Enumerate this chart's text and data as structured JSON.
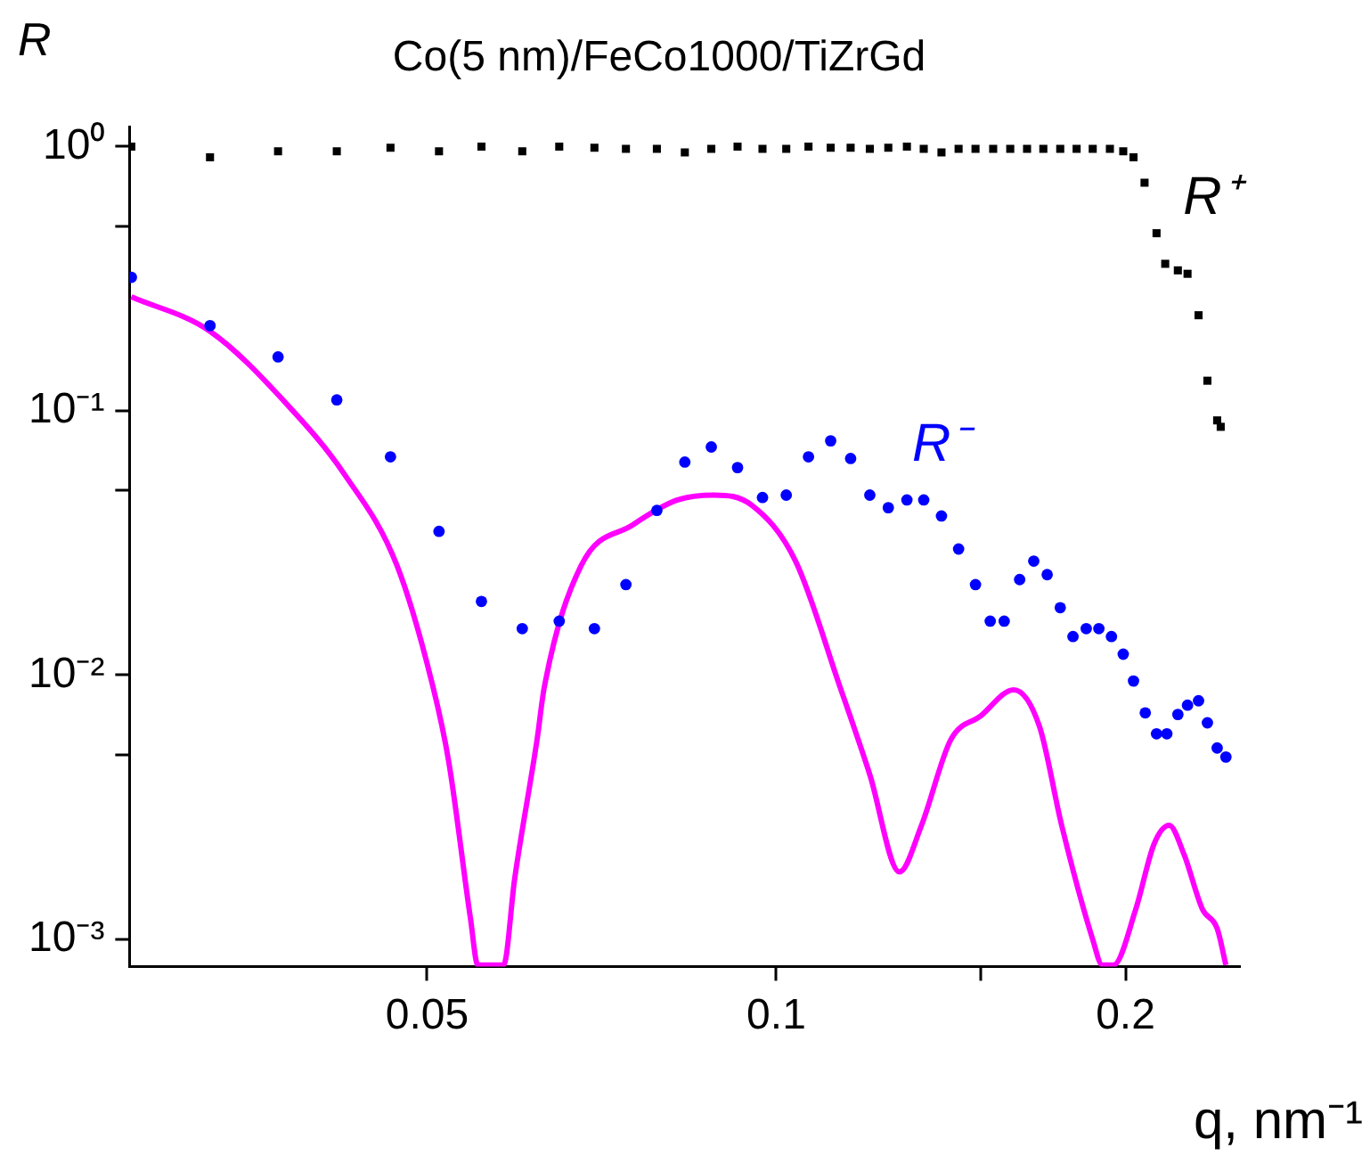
{
  "chart_data": {
    "type": "scatter",
    "title": "Co(5 nm)/FeCo1000/TiZrGd",
    "xlabel": "q, nm⁻¹",
    "ylabel": "R",
    "log": "xy",
    "grid": false,
    "legend": false,
    "xlim": [
      0.0277,
      0.251
    ],
    "xticks": [
      0.05,
      0.1,
      {
        "value": 0.15,
        "label": null
      },
      0.2
    ],
    "ylim": [
      0.00079,
      1.19
    ],
    "yticks": [
      {
        "value": 1,
        "label": "10⁰"
      },
      {
        "value": 0.5,
        "label": null
      },
      {
        "value": 0.1,
        "label": "10⁻¹"
      },
      {
        "value": 0.05,
        "label": null
      },
      {
        "value": 0.01,
        "label": "10⁻²"
      },
      {
        "value": 0.005,
        "label": null
      },
      {
        "value": 0.001,
        "label": "10⁻³"
      }
    ],
    "series": [
      {
        "name": "R⁺",
        "marker": "square",
        "color": "#000000",
        "x": [
          0.0278,
          0.0325,
          0.0372,
          0.0418,
          0.0465,
          0.0512,
          0.0557,
          0.0604,
          0.065,
          0.0697,
          0.0742,
          0.0789,
          0.0834,
          0.0879,
          0.0926,
          0.0973,
          0.102,
          0.1066,
          0.1114,
          0.1159,
          0.1204,
          0.1249,
          0.1296,
          0.134,
          0.1388,
          0.1436,
          0.1485,
          0.1538,
          0.1591,
          0.1645,
          0.1699,
          0.1757,
          0.1815,
          0.1874,
          0.1939,
          0.1991,
          0.2032,
          0.2077,
          0.2127,
          0.2164,
          0.2219,
          0.2262,
          0.2312,
          0.2353,
          0.2399,
          0.2416
        ],
        "values": [
          1.0,
          0.91,
          0.96,
          0.96,
          0.99,
          0.96,
          1.0,
          0.96,
          1.0,
          0.99,
          0.98,
          0.98,
          0.95,
          0.98,
          1.0,
          0.98,
          0.98,
          1.0,
          0.99,
          0.99,
          0.98,
          0.99,
          1.0,
          0.98,
          0.95,
          0.98,
          0.98,
          0.98,
          0.98,
          0.98,
          0.98,
          0.98,
          0.98,
          0.98,
          0.98,
          0.96,
          0.91,
          0.73,
          0.47,
          0.36,
          0.34,
          0.33,
          0.23,
          0.13,
          0.092,
          0.087
        ]
      },
      {
        "name": "R⁻",
        "marker": "circle",
        "color": "#0000ff",
        "x": [
          0.0278,
          0.0325,
          0.0372,
          0.0418,
          0.0465,
          0.0512,
          0.0557,
          0.0604,
          0.065,
          0.0697,
          0.0742,
          0.0789,
          0.0834,
          0.0879,
          0.0926,
          0.0973,
          0.102,
          0.1066,
          0.1114,
          0.1159,
          0.1204,
          0.1249,
          0.1296,
          0.134,
          0.1388,
          0.1436,
          0.1485,
          0.1529,
          0.1572,
          0.1621,
          0.1667,
          0.1712,
          0.1757,
          0.1802,
          0.185,
          0.1897,
          0.1945,
          0.1991,
          0.2032,
          0.208,
          0.2127,
          0.2171,
          0.2219,
          0.2262,
          0.2312,
          0.2353,
          0.2399,
          0.2441
        ],
        "values": [
          0.32,
          0.21,
          0.16,
          0.11,
          0.067,
          0.035,
          0.019,
          0.015,
          0.016,
          0.015,
          0.022,
          0.042,
          0.064,
          0.073,
          0.061,
          0.047,
          0.048,
          0.067,
          0.077,
          0.066,
          0.048,
          0.043,
          0.046,
          0.046,
          0.04,
          0.03,
          0.022,
          0.016,
          0.016,
          0.023,
          0.027,
          0.024,
          0.018,
          0.014,
          0.015,
          0.015,
          0.014,
          0.012,
          0.0095,
          0.0072,
          0.006,
          0.006,
          0.0071,
          0.0077,
          0.008,
          0.0066,
          0.0053,
          0.0049
        ]
      },
      {
        "type": "line",
        "marker": "none",
        "color": "#ff00ff",
        "x": [
          0.0278,
          0.0325,
          0.038,
          0.0425,
          0.0471,
          0.0506,
          0.0522,
          0.0545,
          0.0553,
          0.0582,
          0.0595,
          0.0622,
          0.0631,
          0.0679,
          0.0752,
          0.0822,
          0.0884,
          0.0952,
          0.1039,
          0.1135,
          0.1204,
          0.1277,
          0.1334,
          0.1414,
          0.15,
          0.1602,
          0.1686,
          0.1762,
          0.1874,
          0.191,
          0.1953,
          0.2041,
          0.2117,
          0.2181,
          0.2246,
          0.233,
          0.2399,
          0.2441
        ],
        "values": [
          0.27,
          0.2,
          0.104,
          0.057,
          0.026,
          0.009,
          0.0047,
          0.0012,
          0.0008,
          0.0008,
          0.0017,
          0.0057,
          0.009,
          0.026,
          0.037,
          0.046,
          0.048,
          0.044,
          0.027,
          0.009,
          0.0042,
          0.0018,
          0.0027,
          0.0057,
          0.007,
          0.0088,
          0.0064,
          0.0027,
          0.001,
          0.0008,
          0.0008,
          0.0013,
          0.0023,
          0.0027,
          0.0021,
          0.0013,
          0.0011,
          0.0008
        ]
      }
    ]
  }
}
